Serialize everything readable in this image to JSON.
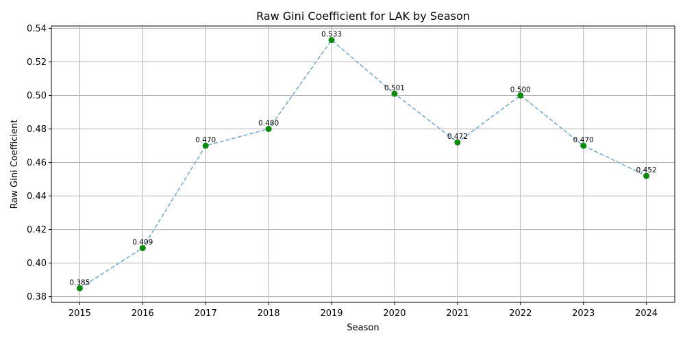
{
  "chart_data": {
    "type": "line",
    "title": "Raw Gini Coefficient for LAK by Season",
    "xlabel": "Season",
    "ylabel": "Raw Gini Coefficient",
    "x": [
      2015,
      2016,
      2017,
      2018,
      2019,
      2020,
      2021,
      2022,
      2023,
      2024
    ],
    "x_tick_labels": [
      "2015",
      "2016",
      "2017",
      "2018",
      "2019",
      "2020",
      "2021",
      "2022",
      "2023",
      "2024"
    ],
    "series": [
      {
        "values": [
          0.385,
          0.409,
          0.47,
          0.48,
          0.533,
          0.501,
          0.472,
          0.5,
          0.47,
          0.452
        ],
        "labels": [
          "0.385",
          "0.409",
          "0.470",
          "0.480",
          "0.533",
          "0.501",
          "0.472",
          "0.500",
          "0.470",
          "0.452"
        ],
        "line_color": "#77acd3",
        "line_style": "dashed",
        "marker_color": "#0a8a0a"
      }
    ],
    "ylim": [
      0.3766,
      0.5414
    ],
    "xlim": [
      2014.55,
      2024.45
    ],
    "y_ticks": [
      0.38,
      0.4,
      0.42,
      0.44,
      0.46,
      0.48,
      0.5,
      0.52,
      0.54
    ],
    "y_tick_labels": [
      "0.38",
      "0.40",
      "0.42",
      "0.44",
      "0.46",
      "0.48",
      "0.50",
      "0.52",
      "0.54"
    ],
    "grid": true
  }
}
